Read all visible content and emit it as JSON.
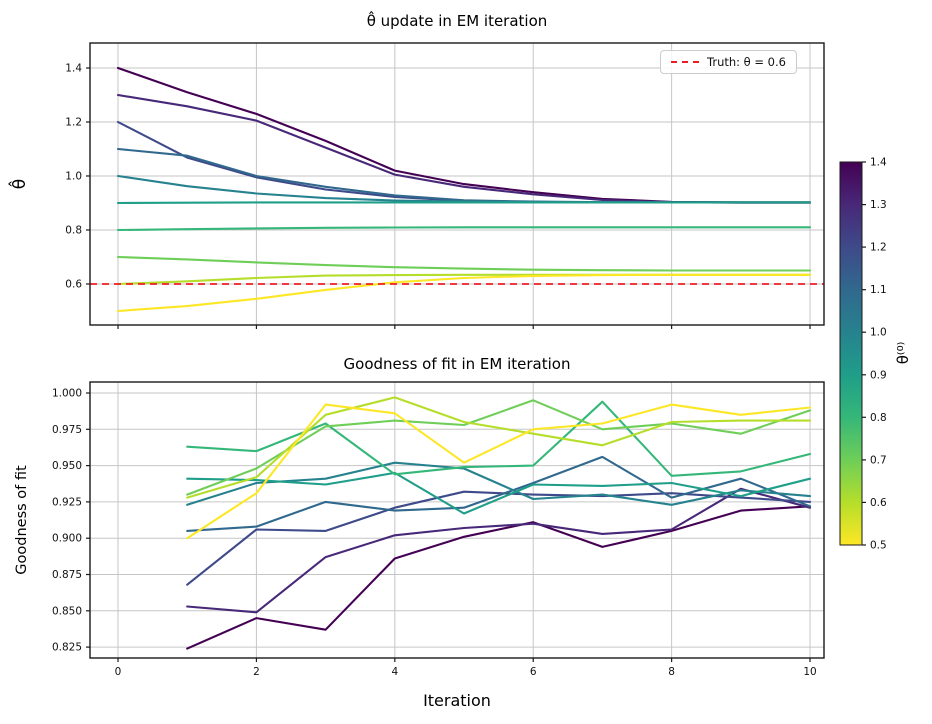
{
  "colors": {
    "grid": "#c6c6c6",
    "spine": "#1a1a1a",
    "truth_red": "#ed1c24",
    "background": "#ffffff"
  },
  "colorbar": {
    "label": "θ⁽⁰⁾",
    "vmin": 0.5,
    "vmax": 1.4,
    "tick_labels": [
      "1.4",
      "1.3",
      "1.2",
      "1.1",
      "1.0",
      "0.9",
      "0.8",
      "0.7",
      "0.6",
      "0.5"
    ],
    "tick_values": [
      1.4,
      1.3,
      1.2,
      1.1,
      1.0,
      0.9,
      0.8,
      0.7,
      0.6,
      0.5
    ],
    "stops_bottom_to_top": [
      "#fde725",
      "#b5de2b",
      "#6ece58",
      "#35b779",
      "#1f9e89",
      "#26828e",
      "#31688e",
      "#3e4a89",
      "#482878",
      "#440154"
    ]
  },
  "chart_data": [
    {
      "type": "line",
      "title": "θ̂ update in EM iteration",
      "ylabel": "θ̂",
      "xlabel": "",
      "x": [
        0,
        1,
        2,
        3,
        4,
        5,
        6,
        7,
        8,
        9,
        10
      ],
      "xlim": [
        -0.405,
        10.202
      ],
      "ylim": [
        0.448,
        1.4926
      ],
      "xticks": [
        0,
        2,
        4,
        6,
        8,
        10
      ],
      "xtick_labels": [],
      "yticks": [
        1.4,
        1.2,
        1.0,
        0.8,
        0.6
      ],
      "ytick_labels": [
        "1.4",
        "1.2",
        "1.0",
        "0.8",
        "0.6"
      ],
      "grid": true,
      "truth": {
        "value": 0.6,
        "label": "Truth: θ = 0.6"
      },
      "legend_position": "upper right",
      "series": [
        {
          "name": "θ⁽⁰⁾=1.4",
          "color": "#440154",
          "values": [
            1.4,
            1.31,
            1.23,
            1.13,
            1.02,
            0.97,
            0.94,
            0.915,
            0.904,
            0.902,
            0.902
          ]
        },
        {
          "name": "θ⁽⁰⁾=1.3",
          "color": "#482878",
          "values": [
            1.3,
            1.258,
            1.205,
            1.105,
            1.005,
            0.96,
            0.932,
            0.911,
            0.903,
            0.901,
            0.901
          ]
        },
        {
          "name": "θ⁽⁰⁾=1.2",
          "color": "#3e4a89",
          "values": [
            1.2,
            1.068,
            0.995,
            0.95,
            0.922,
            0.908,
            0.904,
            0.902,
            0.902,
            0.902,
            0.902
          ]
        },
        {
          "name": "θ⁽⁰⁾=1.1",
          "color": "#31688e",
          "values": [
            1.1,
            1.075,
            1.0,
            0.96,
            0.928,
            0.91,
            0.905,
            0.903,
            0.902,
            0.902,
            0.902
          ]
        },
        {
          "name": "θ⁽⁰⁾=1.0",
          "color": "#26828e",
          "values": [
            1.0,
            0.962,
            0.935,
            0.918,
            0.909,
            0.905,
            0.903,
            0.902,
            0.902,
            0.902,
            0.902
          ]
        },
        {
          "name": "θ⁽⁰⁾=0.9",
          "color": "#1f9e89",
          "values": [
            0.9,
            0.901,
            0.902,
            0.902,
            0.902,
            0.902,
            0.902,
            0.902,
            0.902,
            0.902,
            0.902
          ]
        },
        {
          "name": "θ⁽⁰⁾=0.8",
          "color": "#35b779",
          "values": [
            0.8,
            0.803,
            0.806,
            0.808,
            0.809,
            0.81,
            0.81,
            0.81,
            0.81,
            0.81,
            0.81
          ]
        },
        {
          "name": "θ⁽⁰⁾=0.7",
          "color": "#6ece58",
          "values": [
            0.7,
            0.691,
            0.68,
            0.67,
            0.662,
            0.657,
            0.653,
            0.651,
            0.65,
            0.65,
            0.65
          ]
        },
        {
          "name": "θ⁽⁰⁾=0.6",
          "color": "#b5de2b",
          "values": [
            0.6,
            0.61,
            0.622,
            0.631,
            0.633,
            0.634,
            0.634,
            0.634,
            0.634,
            0.634,
            0.634
          ]
        },
        {
          "name": "θ⁽⁰⁾=0.5",
          "color": "#fde725",
          "values": [
            0.5,
            0.518,
            0.545,
            0.578,
            0.606,
            0.622,
            0.63,
            0.633,
            0.634,
            0.634,
            0.634
          ]
        }
      ]
    },
    {
      "type": "line",
      "title": "Goodness of fit in EM iteration",
      "ylabel": "Goodness of fit",
      "xlabel": "Iteration",
      "x": [
        1,
        2,
        3,
        4,
        5,
        6,
        7,
        8,
        9,
        10
      ],
      "xlim": [
        -0.405,
        10.202
      ],
      "ylim": [
        0.8175,
        1.00758
      ],
      "xticks": [
        0,
        2,
        4,
        6,
        8,
        10
      ],
      "xtick_labels": [
        "0",
        "2",
        "4",
        "6",
        "8",
        "10"
      ],
      "yticks": [
        1.0,
        0.975,
        0.95,
        0.925,
        0.9,
        0.875,
        0.85,
        0.825
      ],
      "ytick_labels": [
        "1.000",
        "0.975",
        "0.950",
        "0.925",
        "0.900",
        "0.875",
        "0.850",
        "0.825"
      ],
      "grid": true,
      "series": [
        {
          "name": "θ⁽⁰⁾=1.4",
          "color": "#440154",
          "values": [
            0.824,
            0.845,
            0.837,
            0.886,
            0.901,
            0.911,
            0.894,
            0.905,
            0.919,
            0.922
          ]
        },
        {
          "name": "θ⁽⁰⁾=1.3",
          "color": "#482878",
          "values": [
            0.853,
            0.849,
            0.887,
            0.902,
            0.907,
            0.91,
            0.903,
            0.906,
            0.934,
            0.921
          ]
        },
        {
          "name": "θ⁽⁰⁾=1.2",
          "color": "#3e4a89",
          "values": [
            0.868,
            0.906,
            0.905,
            0.921,
            0.932,
            0.93,
            0.929,
            0.931,
            0.928,
            0.925
          ]
        },
        {
          "name": "θ⁽⁰⁾=1.1",
          "color": "#31688e",
          "values": [
            0.905,
            0.908,
            0.925,
            0.919,
            0.921,
            0.938,
            0.956,
            0.928,
            0.941,
            0.922
          ]
        },
        {
          "name": "θ⁽⁰⁾=1.0",
          "color": "#26828e",
          "values": [
            0.923,
            0.938,
            0.941,
            0.952,
            0.948,
            0.927,
            0.93,
            0.923,
            0.933,
            0.929
          ]
        },
        {
          "name": "θ⁽⁰⁾=0.9",
          "color": "#1f9e89",
          "values": [
            0.941,
            0.94,
            0.937,
            0.945,
            0.917,
            0.937,
            0.936,
            0.938,
            0.929,
            0.941
          ]
        },
        {
          "name": "θ⁽⁰⁾=0.8",
          "color": "#35b779",
          "values": [
            0.963,
            0.96,
            0.979,
            0.944,
            0.949,
            0.95,
            0.994,
            0.943,
            0.946,
            0.958
          ]
        },
        {
          "name": "θ⁽⁰⁾=0.7",
          "color": "#6ece58",
          "values": [
            0.93,
            0.948,
            0.977,
            0.981,
            0.978,
            0.995,
            0.975,
            0.979,
            0.972,
            0.988
          ]
        },
        {
          "name": "θ⁽⁰⁾=0.6",
          "color": "#b5de2b",
          "values": [
            0.928,
            0.942,
            0.985,
            0.997,
            0.98,
            0.972,
            0.964,
            0.98,
            0.981,
            0.981
          ]
        },
        {
          "name": "θ⁽⁰⁾=0.5",
          "color": "#fde725",
          "values": [
            0.9,
            0.931,
            0.992,
            0.986,
            0.952,
            0.975,
            0.979,
            0.992,
            0.985,
            0.99
          ]
        }
      ]
    }
  ]
}
